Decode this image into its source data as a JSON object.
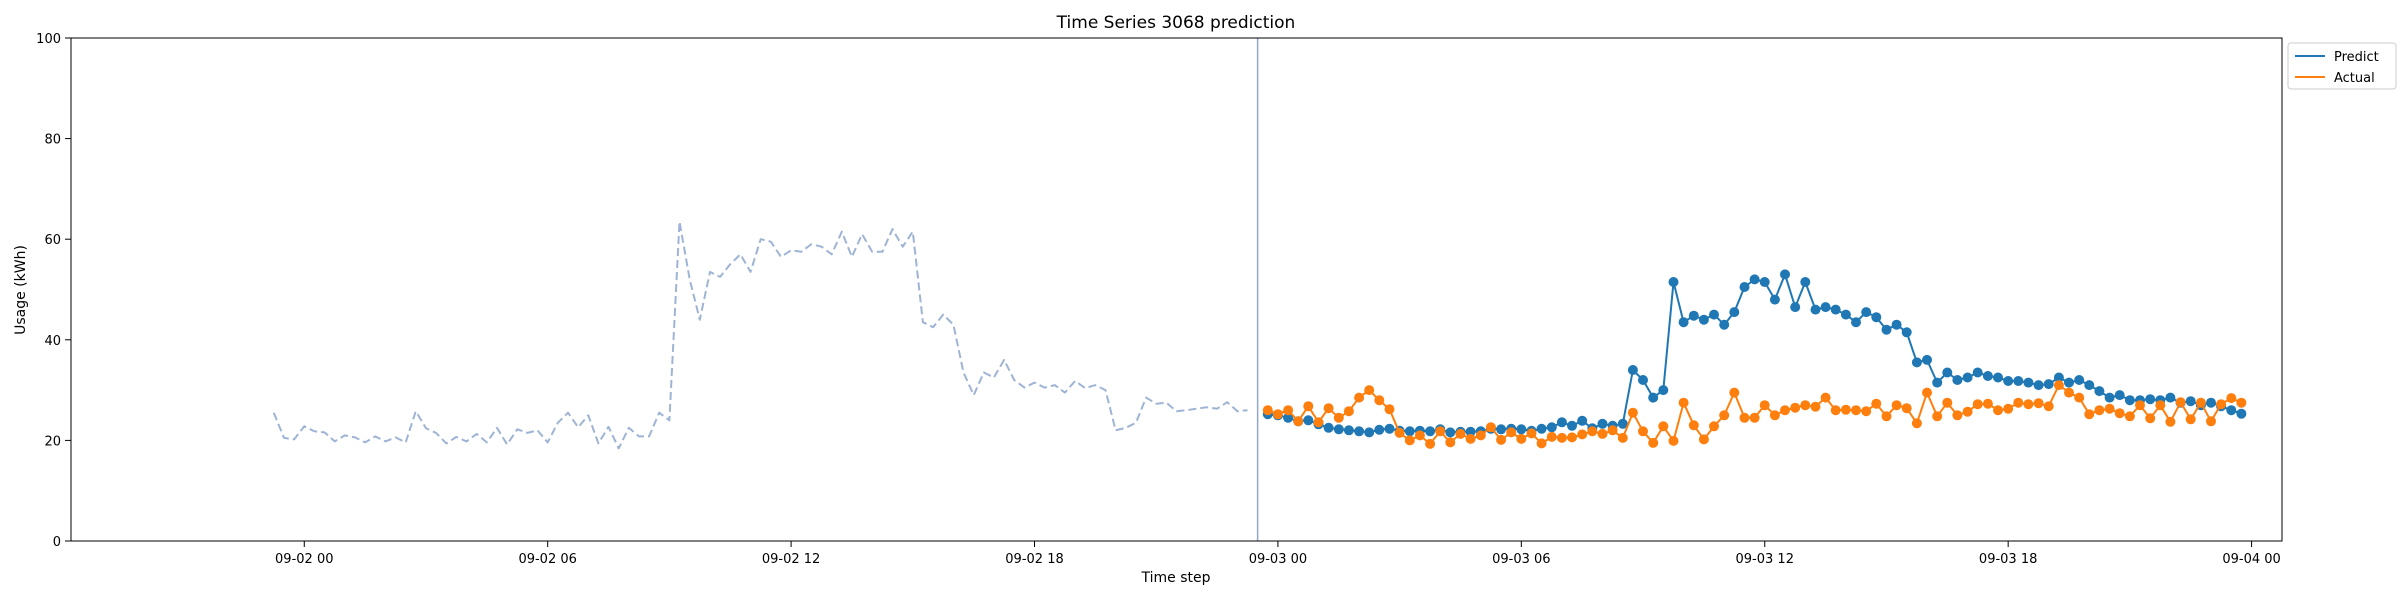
{
  "chart_data": {
    "type": "line",
    "title": "Time Series 3068 prediction",
    "xlabel": "Time step",
    "ylabel": "Usage (kWh)",
    "ylim": [
      0,
      100
    ],
    "yticks": [
      "0",
      "20",
      "40",
      "60",
      "80",
      "100"
    ],
    "xlim": [
      "2023-09-01 18:15",
      "2023-09-04 00:45"
    ],
    "xticks": [
      {
        "t": "2023-09-02 00:00",
        "label": "09-02 00"
      },
      {
        "t": "2023-09-02 06:00",
        "label": "09-02 06"
      },
      {
        "t": "2023-09-02 12:00",
        "label": "09-02 12"
      },
      {
        "t": "2023-09-02 18:00",
        "label": "09-02 18"
      },
      {
        "t": "2023-09-03 00:00",
        "label": "09-03 00"
      },
      {
        "t": "2023-09-03 06:00",
        "label": "09-03 06"
      },
      {
        "t": "2023-09-03 12:00",
        "label": "09-03 12"
      },
      {
        "t": "2023-09-03 18:00",
        "label": "09-03 18"
      },
      {
        "t": "2023-09-04 00:00",
        "label": "09-04 00"
      }
    ],
    "grid": false,
    "legend_position": "outside-top-right",
    "forecast_start": "2023-09-02 23:30",
    "series": [
      {
        "role": "history",
        "color": "#9fb4d4",
        "style": "dashed",
        "start": "2023-09-01 23:15",
        "interval_minutes": 15,
        "values": [
          25.5,
          20.5,
          20.2,
          22.8,
          21.8,
          21.6,
          19.8,
          21.0,
          20.6,
          19.6,
          20.8,
          19.8,
          20.6,
          19.6,
          25.8,
          22.4,
          21.5,
          19.4,
          20.7,
          19.8,
          21.3,
          19.6,
          22.5,
          19.2,
          22.2,
          21.5,
          22.0,
          19.6,
          23.5,
          25.5,
          22.6,
          25.0,
          19.4,
          22.7,
          18.4,
          22.5,
          20.8,
          20.8,
          25.5,
          24.0,
          63.5,
          52.0,
          44.0,
          53.5,
          52.5,
          55.0,
          57.0,
          53.5,
          60.0,
          59.5,
          56.5,
          57.8,
          57.5,
          59.0,
          58.5,
          57.0,
          61.5,
          56.5,
          61.0,
          57.5,
          57.5,
          62.0,
          58.5,
          61.5,
          43.5,
          42.5,
          45.0,
          43.0,
          33.5,
          29.0,
          33.5,
          32.5,
          36.0,
          32.0,
          30.5,
          31.5,
          30.5,
          31.0,
          29.5,
          31.8,
          30.4,
          31.0,
          30.0,
          22.0,
          22.5,
          23.5,
          28.5,
          27.3,
          27.5,
          25.8,
          26.0,
          26.3,
          26.6,
          26.3,
          27.6,
          25.8,
          26.0
        ]
      },
      {
        "name": "Predict",
        "color": "#1f77b4",
        "style": "solid",
        "markers": true,
        "start": "2023-09-02 23:45",
        "interval_minutes": 15,
        "values": [
          25.2,
          25.0,
          24.5,
          23.8,
          24.0,
          23.2,
          22.5,
          22.2,
          22.0,
          21.8,
          21.6,
          22.1,
          22.3,
          21.9,
          21.8,
          21.9,
          21.8,
          22.2,
          21.6,
          21.7,
          21.7,
          21.8,
          22.3,
          22.2,
          22.3,
          22.2,
          21.9,
          22.3,
          22.6,
          23.6,
          22.9,
          23.9,
          22.4,
          23.3,
          22.9,
          23.3,
          34.0,
          32.0,
          28.5,
          30.0,
          51.5,
          43.5,
          44.8,
          44.0,
          45.0,
          43.0,
          45.5,
          50.5,
          52.0,
          51.5,
          48.0,
          53.0,
          46.5,
          51.5,
          46.0,
          46.5,
          46.0,
          45.0,
          43.5,
          45.5,
          44.5,
          42.0,
          43.0,
          41.5,
          35.5,
          36.0,
          31.5,
          33.5,
          32.0,
          32.5,
          33.5,
          32.8,
          32.5,
          31.8,
          31.8,
          31.5,
          31.0,
          31.2,
          32.5,
          31.5,
          32.0,
          31.0,
          29.8,
          28.5,
          29.0,
          28.0,
          28.0,
          28.2,
          28.0,
          28.5,
          27.5,
          27.8,
          27.0,
          27.5,
          26.8,
          26.0,
          25.3
        ]
      },
      {
        "name": "Actual",
        "color": "#ff7f0e",
        "style": "solid",
        "markers": true,
        "start": "2023-09-02 23:45",
        "interval_minutes": 15,
        "values": [
          26.0,
          25.2,
          26.0,
          23.8,
          26.8,
          23.6,
          26.4,
          24.5,
          25.8,
          28.5,
          30.0,
          28.0,
          26.2,
          21.5,
          20.0,
          21.0,
          19.3,
          21.8,
          19.6,
          21.3,
          20.3,
          21.0,
          22.6,
          20.1,
          21.6,
          20.3,
          21.4,
          19.4,
          20.7,
          20.5,
          20.6,
          21.2,
          21.8,
          21.3,
          22.0,
          20.5,
          25.5,
          21.8,
          19.5,
          22.8,
          19.9,
          27.5,
          23.0,
          20.2,
          22.8,
          25.0,
          29.5,
          24.5,
          24.5,
          27.0,
          25.0,
          26.0,
          26.5,
          27.0,
          26.7,
          28.5,
          26.0,
          26.1,
          26.0,
          25.8,
          27.3,
          24.8,
          27.0,
          26.4,
          23.4,
          29.5,
          24.8,
          27.5,
          25.0,
          25.7,
          27.2,
          27.3,
          26.0,
          26.3,
          27.5,
          27.2,
          27.4,
          26.8,
          31.0,
          29.5,
          28.5,
          25.2,
          26.0,
          26.3,
          25.4,
          24.8,
          27.0,
          24.4,
          27.0,
          23.7,
          27.6,
          24.2,
          27.5,
          23.8,
          27.2,
          28.4,
          27.5
        ]
      }
    ]
  }
}
